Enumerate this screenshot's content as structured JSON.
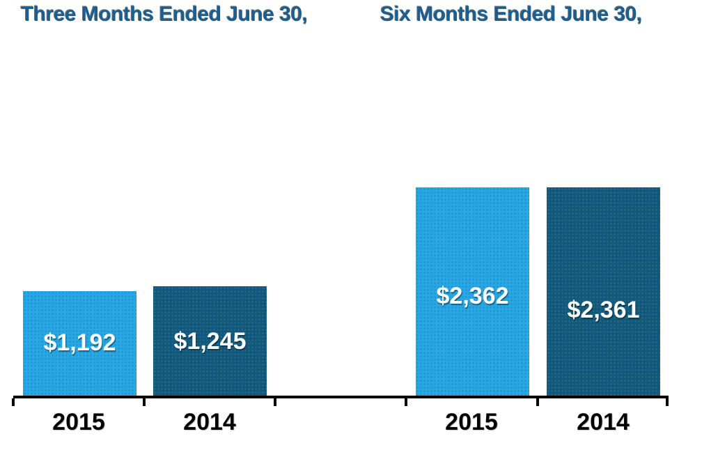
{
  "chart_data": {
    "type": "bar",
    "groups": [
      {
        "title": "Three Months Ended June 30,",
        "categories": [
          "2015",
          "2014"
        ],
        "values": [
          1192,
          1245
        ],
        "value_labels": [
          "$1,192",
          "$1,245"
        ]
      },
      {
        "title": "Six Months Ended June 30,",
        "categories": [
          "2015",
          "2014"
        ],
        "values": [
          2362,
          2361
        ],
        "value_labels": [
          "$2,362",
          "$2,361"
        ]
      }
    ],
    "series_colors": {
      "2015": "#29A7E2",
      "2014": "#11587E"
    },
    "title_color": "#1A5E92",
    "value_label_color": "#FFFFFF",
    "axis_color": "#000000",
    "background_color": "#FFFFFF",
    "y_axis_shown": false,
    "grid": false,
    "legend": "none"
  }
}
